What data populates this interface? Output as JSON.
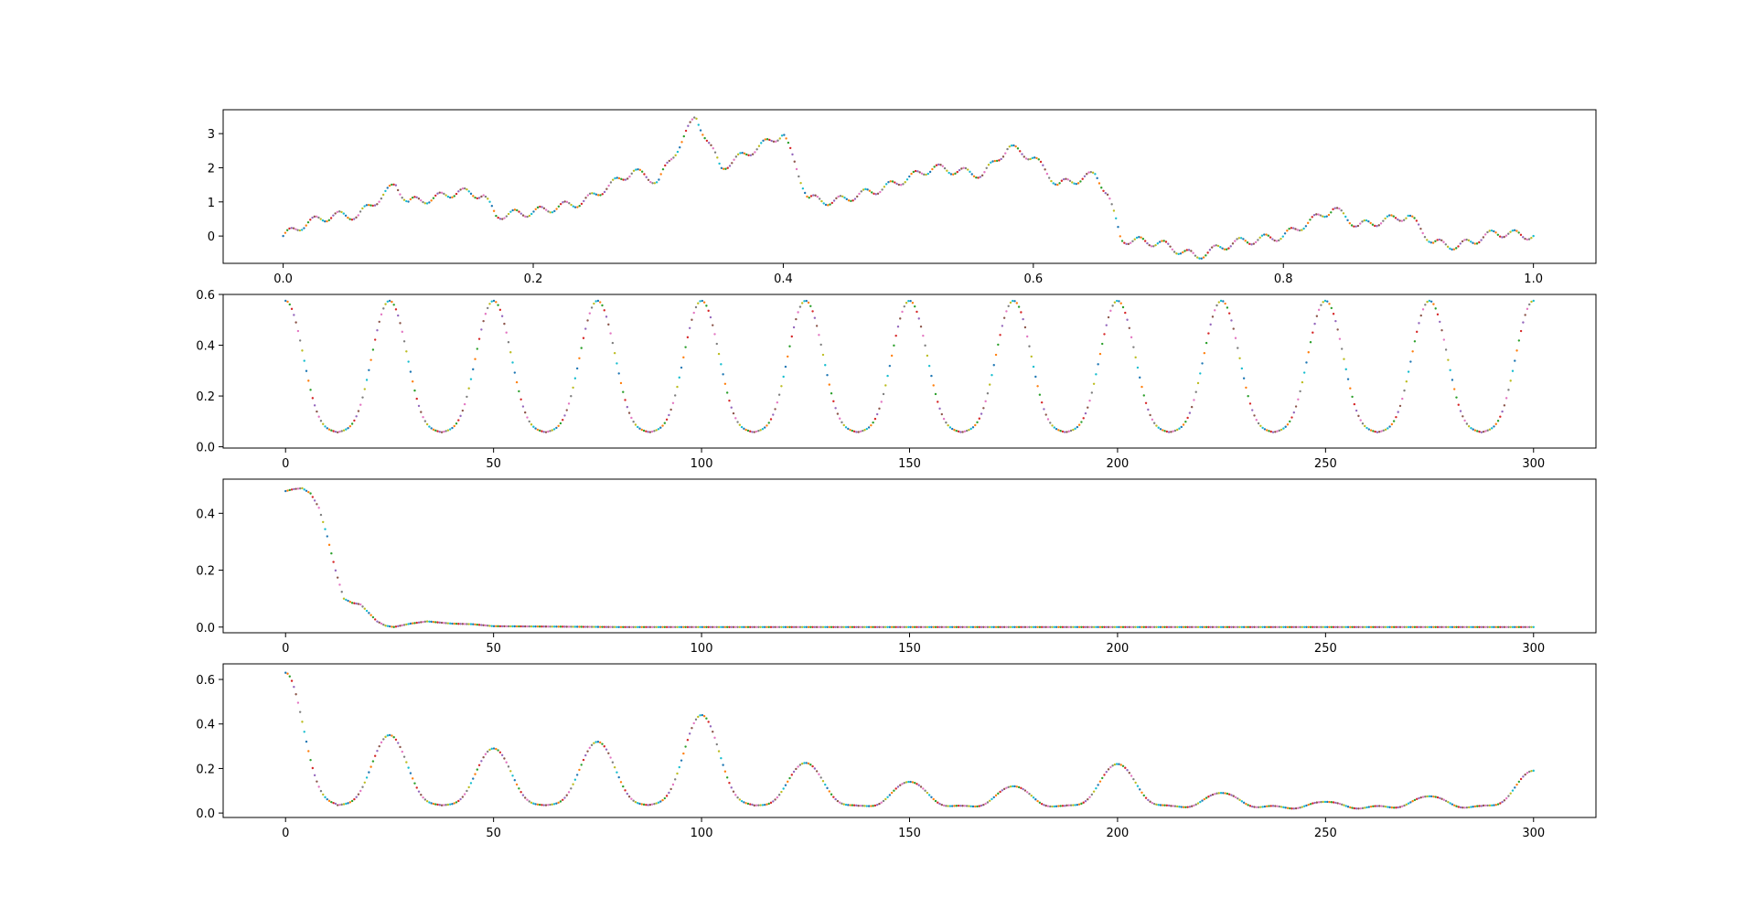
{
  "chart_data": [
    {
      "type": "scatter",
      "title": "",
      "xlabel": "",
      "ylabel": "",
      "xlim": [
        -0.048,
        1.05
      ],
      "ylim": [
        -0.8,
        3.7
      ],
      "xticks": [
        0.0,
        0.2,
        0.4,
        0.6,
        0.8,
        1.0
      ],
      "xtick_labels": [
        "0.0",
        "0.2",
        "0.4",
        "0.6",
        "0.8",
        "1.0"
      ],
      "yticks": [
        0,
        1,
        2,
        3
      ],
      "ytick_labels": [
        "0",
        "1",
        "2",
        "3"
      ],
      "grid": false,
      "n_points": 600,
      "series": [
        {
          "x": [
            0.0,
            0.02,
            0.04,
            0.06,
            0.08,
            0.09,
            0.1,
            0.12,
            0.14,
            0.16,
            0.17,
            0.2,
            0.24,
            0.28,
            0.3,
            0.33,
            0.35,
            0.38,
            0.4,
            0.42,
            0.44,
            0.48,
            0.52,
            0.56,
            0.58,
            0.6,
            0.62,
            0.65,
            0.66,
            0.67,
            0.7,
            0.73,
            0.76,
            0.8,
            0.84,
            0.86,
            0.9,
            0.92,
            0.94,
            0.97,
            1.0
          ],
          "y": [
            0.0,
            0.4,
            0.6,
            0.6,
            1.2,
            1.5,
            1.0,
            1.1,
            1.3,
            1.2,
            0.6,
            0.7,
            1.0,
            1.9,
            1.6,
            3.5,
            2.0,
            2.6,
            3.0,
            1.1,
            1.0,
            1.4,
            2.0,
            1.8,
            2.6,
            2.3,
            1.5,
            1.8,
            1.2,
            -0.1,
            -0.2,
            -0.6,
            -0.2,
            0.0,
            0.8,
            0.3,
            0.6,
            -0.2,
            -0.3,
            0.1,
            0.0
          ],
          "wiggle_amplitude": 0.12,
          "wiggle_period": 0.02
        }
      ]
    },
    {
      "type": "scatter",
      "title": "",
      "xlabel": "",
      "ylabel": "",
      "xlim": [
        -15,
        315
      ],
      "ylim": [
        -0.005,
        0.6
      ],
      "xticks": [
        0,
        50,
        100,
        150,
        200,
        250,
        300
      ],
      "xtick_labels": [
        "0",
        "50",
        "100",
        "150",
        "200",
        "250",
        "300"
      ],
      "yticks": [
        0.0,
        0.2,
        0.4,
        0.6
      ],
      "ytick_labels": [
        "0.0",
        "0.2",
        "0.4",
        "0.6"
      ],
      "grid": false,
      "n_points": 600,
      "series": [
        {
          "period": 25,
          "peak": 0.575,
          "trough": 0.02,
          "side_lobe": 0.05,
          "x_start": 0,
          "x_end": 300
        }
      ]
    },
    {
      "type": "scatter",
      "title": "",
      "xlabel": "",
      "ylabel": "",
      "xlim": [
        -15,
        315
      ],
      "ylim": [
        -0.02,
        0.52
      ],
      "xticks": [
        0,
        50,
        100,
        150,
        200,
        250,
        300
      ],
      "xtick_labels": [
        "0",
        "50",
        "100",
        "150",
        "200",
        "250",
        "300"
      ],
      "yticks": [
        0.0,
        0.2,
        0.4
      ],
      "ytick_labels": [
        "0.0",
        "0.2",
        "0.4"
      ],
      "grid": false,
      "n_points": 600,
      "series": [
        {
          "x": [
            0,
            2,
            4,
            6,
            8,
            10,
            12,
            14,
            16,
            18,
            20,
            22,
            24,
            26,
            30,
            34,
            40,
            45,
            50,
            60,
            80,
            300
          ],
          "y": [
            0.478,
            0.485,
            0.488,
            0.47,
            0.42,
            0.32,
            0.2,
            0.1,
            0.085,
            0.08,
            0.05,
            0.02,
            0.005,
            0.0,
            0.012,
            0.02,
            0.012,
            0.01,
            0.003,
            0.002,
            0.0,
            0.0
          ]
        }
      ]
    },
    {
      "type": "scatter",
      "title": "",
      "xlabel": "",
      "ylabel": "",
      "xlim": [
        -15,
        315
      ],
      "ylim": [
        -0.02,
        0.67
      ],
      "xticks": [
        0,
        50,
        100,
        150,
        200,
        250,
        300
      ],
      "xtick_labels": [
        "0",
        "50",
        "100",
        "150",
        "200",
        "250",
        "300"
      ],
      "yticks": [
        0.0,
        0.2,
        0.4,
        0.6
      ],
      "ytick_labels": [
        "0.0",
        "0.2",
        "0.4",
        "0.6"
      ],
      "grid": false,
      "n_points": 600,
      "series": [
        {
          "period": 25,
          "trough": 0.01,
          "side_lobe": 0.035,
          "peaks": [
            0.63,
            0.35,
            0.29,
            0.32,
            0.44,
            0.225,
            0.14,
            0.12,
            0.22,
            0.09,
            0.05,
            0.075,
            0.19
          ],
          "x_start": 0,
          "x_end": 300
        }
      ]
    }
  ],
  "dot_colors": [
    "#1f77b4",
    "#ff7f0e",
    "#2ca02c",
    "#d62728",
    "#9467bd",
    "#8c564b",
    "#e377c2",
    "#7f7f7f",
    "#bcbd22",
    "#17becf"
  ]
}
